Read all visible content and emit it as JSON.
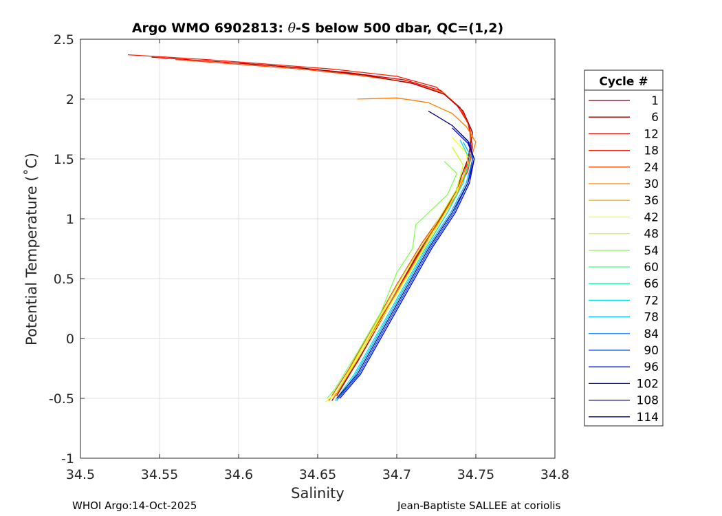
{
  "chart_data": {
    "type": "line",
    "title": "Argo WMO 6902813: θ-S below 500 dbar,  QC=(1,2)",
    "title_prefix": "Argo WMO 6902813: ",
    "title_theta": "θ",
    "title_suffix": "-S below 500 dbar,  QC=(1,2)",
    "xlabel": "Salinity",
    "ylabel": "Potential Temperature (˚C)",
    "xlim": [
      34.5,
      34.8
    ],
    "ylim": [
      -1,
      2.5
    ],
    "xticks": [
      "34.5",
      "34.55",
      "34.6",
      "34.65",
      "34.7",
      "34.75",
      "34.8"
    ],
    "yticks": [
      "2.5",
      "2",
      "1.5",
      "1",
      "0.5",
      "0",
      "-0.5",
      "-1"
    ],
    "grid": true,
    "legend": {
      "title": "Cycle #",
      "placement": "right",
      "entries": [
        {
          "label": "1",
          "color": "#80000c"
        },
        {
          "label": "6",
          "color": "#a00000"
        },
        {
          "label": "12",
          "color": "#e60000"
        },
        {
          "label": "18",
          "color": "#ff1a00"
        },
        {
          "label": "24",
          "color": "#ff4d00"
        },
        {
          "label": "30",
          "color": "#ff8000"
        },
        {
          "label": "36",
          "color": "#ffb300"
        },
        {
          "label": "42",
          "color": "#ffff00"
        },
        {
          "label": "48",
          "color": "#c8ff19"
        },
        {
          "label": "54",
          "color": "#80ff4d"
        },
        {
          "label": "60",
          "color": "#40ff80"
        },
        {
          "label": "66",
          "color": "#19f0b3"
        },
        {
          "label": "72",
          "color": "#00e0e0"
        },
        {
          "label": "78",
          "color": "#00b3ff"
        },
        {
          "label": "84",
          "color": "#0080ff"
        },
        {
          "label": "90",
          "color": "#004dff"
        },
        {
          "label": "96",
          "color": "#0019ff"
        },
        {
          "label": "102",
          "color": "#0000e0"
        },
        {
          "label": "108",
          "color": "#0000b0"
        },
        {
          "label": "114",
          "color": "#000080"
        }
      ]
    },
    "series": [
      {
        "color": "#ff1a00",
        "x": [
          34.53,
          34.58,
          34.62,
          34.66,
          34.7,
          34.725,
          34.738,
          34.745,
          34.748,
          34.745,
          34.735,
          34.72,
          34.705,
          34.69,
          34.675,
          34.66
        ],
        "y": [
          2.37,
          2.33,
          2.29,
          2.25,
          2.19,
          2.1,
          1.95,
          1.8,
          1.6,
          1.4,
          1.15,
          0.85,
          0.5,
          0.15,
          -0.2,
          -0.5
        ]
      },
      {
        "color": "#e60000",
        "x": [
          34.545,
          34.59,
          34.63,
          34.67,
          34.705,
          34.728,
          34.74,
          34.746,
          34.747,
          34.743,
          34.733,
          34.718,
          34.703,
          34.688,
          34.673,
          34.659
        ],
        "y": [
          2.35,
          2.31,
          2.27,
          2.22,
          2.16,
          2.07,
          1.93,
          1.77,
          1.58,
          1.38,
          1.12,
          0.82,
          0.47,
          0.12,
          -0.22,
          -0.52
        ]
      },
      {
        "color": "#ff4d00",
        "x": [
          34.56,
          34.6,
          34.64,
          34.675,
          34.708,
          34.73,
          34.741,
          34.747,
          34.746,
          34.742,
          34.732,
          34.716,
          34.7,
          34.685,
          34.67,
          34.657
        ],
        "y": [
          2.33,
          2.29,
          2.25,
          2.2,
          2.14,
          2.05,
          1.91,
          1.75,
          1.55,
          1.35,
          1.1,
          0.8,
          0.45,
          0.1,
          -0.25,
          -0.52
        ]
      },
      {
        "color": "#a00000",
        "x": [
          34.6,
          34.64,
          34.68,
          34.71,
          34.73,
          34.742,
          34.748,
          34.745,
          34.737,
          34.722,
          34.707,
          34.692,
          34.677,
          34.662
        ],
        "y": [
          2.3,
          2.26,
          2.2,
          2.13,
          2.04,
          1.9,
          1.72,
          1.5,
          1.22,
          0.9,
          0.55,
          0.2,
          -0.15,
          -0.48
        ]
      },
      {
        "color": "#ff8000",
        "x": [
          34.675,
          34.7,
          34.72,
          34.735,
          34.744,
          34.75,
          34.746,
          34.738,
          34.722,
          34.706,
          34.69,
          34.675,
          34.66
        ],
        "y": [
          2.0,
          2.01,
          1.97,
          1.88,
          1.77,
          1.64,
          1.46,
          1.2,
          0.88,
          0.52,
          0.18,
          -0.18,
          -0.5
        ]
      },
      {
        "color": "#ffff00",
        "x": [
          34.735,
          34.744,
          34.745,
          34.738,
          34.724,
          34.708,
          34.692,
          34.676,
          34.662,
          34.655
        ],
        "y": [
          1.68,
          1.55,
          1.45,
          1.22,
          0.9,
          0.55,
          0.2,
          -0.15,
          -0.45,
          -0.53
        ]
      },
      {
        "color": "#80ff4d",
        "x": [
          34.73,
          34.738,
          34.732,
          34.712,
          34.71,
          34.7,
          34.69,
          34.675,
          34.661,
          34.656
        ],
        "y": [
          1.48,
          1.38,
          1.2,
          0.95,
          0.75,
          0.55,
          0.22,
          -0.12,
          -0.42,
          -0.5
        ]
      },
      {
        "color": "#c8ff19",
        "x": [
          34.735,
          34.742,
          34.738,
          34.722,
          34.705,
          34.69,
          34.675,
          34.662
        ],
        "y": [
          1.6,
          1.45,
          1.25,
          0.9,
          0.55,
          0.2,
          -0.15,
          -0.45
        ]
      },
      {
        "color": "#00e0e0",
        "x": [
          34.74,
          34.746,
          34.742,
          34.732,
          34.718,
          34.703,
          34.688,
          34.673,
          34.661
        ],
        "y": [
          1.66,
          1.5,
          1.3,
          1.05,
          0.75,
          0.4,
          0.05,
          -0.3,
          -0.52
        ]
      },
      {
        "color": "#00b3ff",
        "x": [
          34.742,
          34.748,
          34.744,
          34.734,
          34.719,
          34.704,
          34.689,
          34.674,
          34.662
        ],
        "y": [
          1.64,
          1.5,
          1.3,
          1.05,
          0.75,
          0.4,
          0.05,
          -0.3,
          -0.52
        ]
      },
      {
        "color": "#004dff",
        "x": [
          34.738,
          34.747,
          34.748,
          34.745,
          34.736,
          34.721,
          34.706,
          34.691,
          34.676,
          34.663
        ],
        "y": [
          1.74,
          1.62,
          1.5,
          1.3,
          1.05,
          0.75,
          0.4,
          0.05,
          -0.3,
          -0.5
        ]
      },
      {
        "color": "#0000e0",
        "x": [
          34.735,
          34.745,
          34.749,
          34.746,
          34.737,
          34.722,
          34.707,
          34.692,
          34.677,
          34.664
        ],
        "y": [
          1.76,
          1.63,
          1.5,
          1.3,
          1.05,
          0.75,
          0.4,
          0.05,
          -0.3,
          -0.5
        ]
      },
      {
        "color": "#000080",
        "x": [
          34.72,
          34.735,
          34.745,
          34.749,
          34.745,
          34.735,
          34.72,
          34.705,
          34.69,
          34.675,
          34.662
        ],
        "y": [
          1.9,
          1.78,
          1.65,
          1.5,
          1.3,
          1.05,
          0.75,
          0.4,
          0.05,
          -0.3,
          -0.5
        ]
      }
    ]
  },
  "footer": {
    "left": "WHOI Argo:14-Oct-2025",
    "right": "Jean-Baptiste SALLEE at coriolis"
  }
}
